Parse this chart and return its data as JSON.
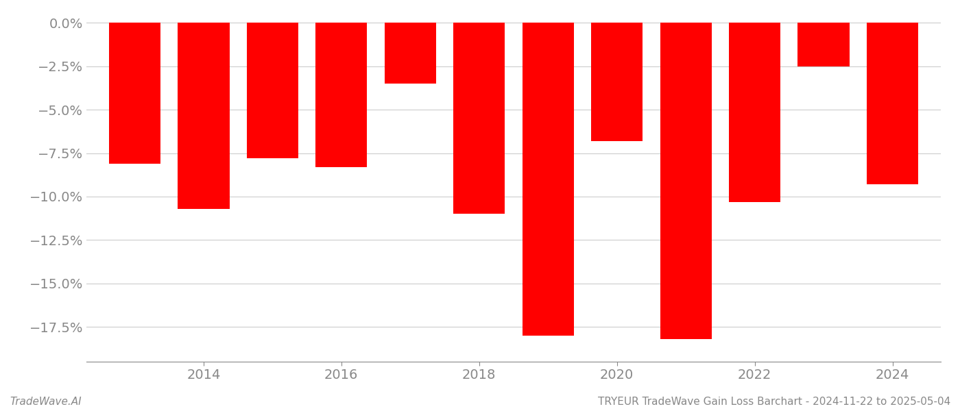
{
  "years": [
    2013,
    2014,
    2015,
    2016,
    2017,
    2018,
    2019,
    2020,
    2021,
    2022,
    2023,
    2024
  ],
  "values": [
    -0.081,
    -0.107,
    -0.078,
    -0.083,
    -0.035,
    -0.11,
    -0.18,
    -0.068,
    -0.182,
    -0.103,
    -0.025,
    -0.093
  ],
  "bar_color": "#ff0000",
  "ylim": [
    -0.195,
    0.006
  ],
  "yticks": [
    0.0,
    -0.025,
    -0.05,
    -0.075,
    -0.1,
    -0.125,
    -0.15,
    -0.175
  ],
  "xlabel": "",
  "ylabel": "",
  "title": "",
  "footer_left": "TradeWave.AI",
  "footer_right": "TRYEUR TradeWave Gain Loss Barchart - 2024-11-22 to 2025-05-04",
  "background_color": "#ffffff",
  "bar_width": 0.75,
  "grid_color": "#cccccc",
  "tick_label_color": "#888888",
  "footer_color": "#888888",
  "tick_fontsize": 14,
  "footer_fontsize": 11
}
